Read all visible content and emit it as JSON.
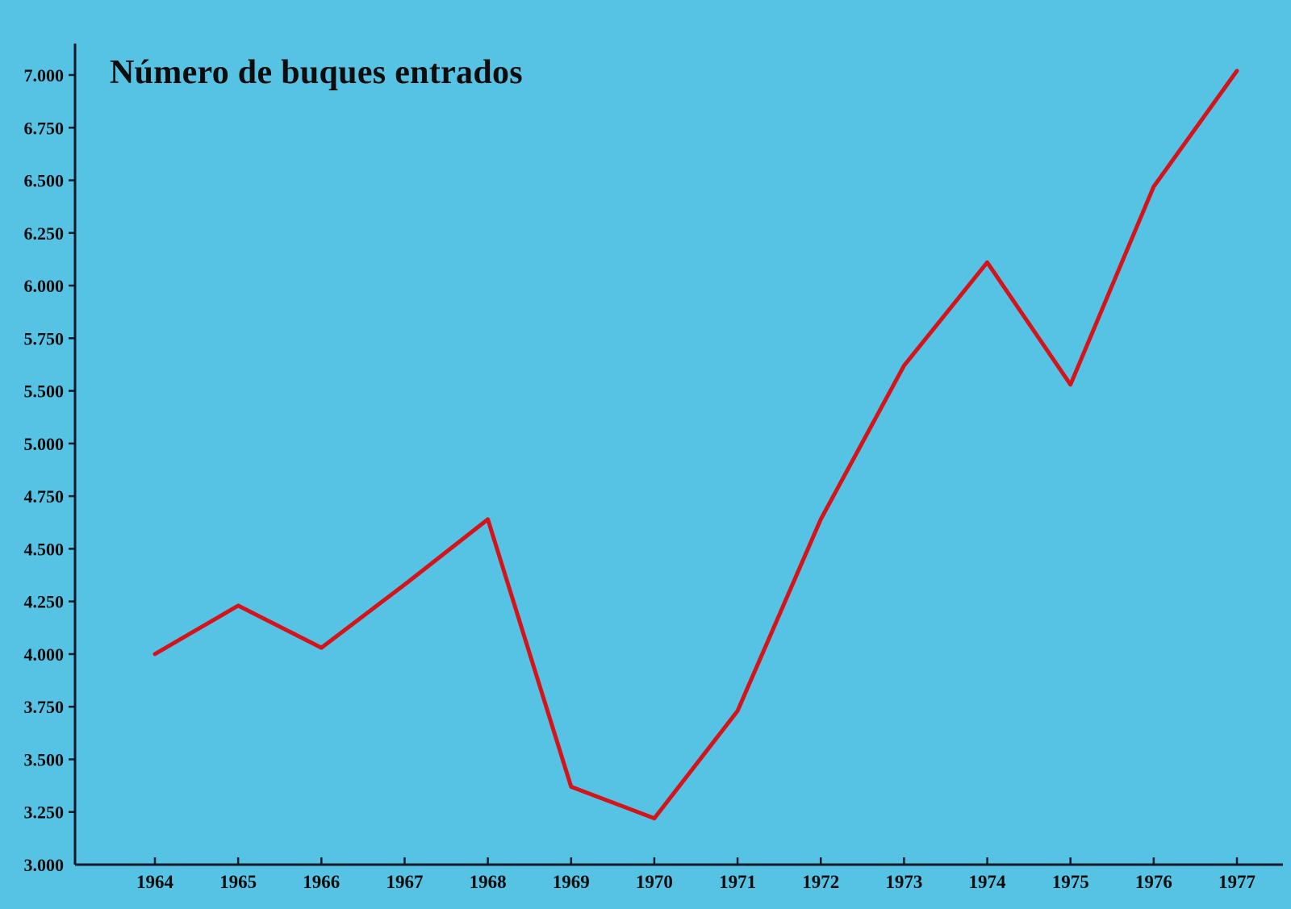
{
  "title": "Número de buques entrados",
  "colors": {
    "background": "#56c3e5",
    "line": "#d4141a",
    "axis": "#0d1a2a",
    "text": "#0d0d0d"
  },
  "chart_data": {
    "type": "line",
    "title": "Número de buques entrados",
    "xlabel": "",
    "ylabel": "",
    "categories": [
      "1964",
      "1965",
      "1966",
      "1967",
      "1968",
      "1969",
      "1970",
      "1971",
      "1972",
      "1973",
      "1974",
      "1975",
      "1976",
      "1977"
    ],
    "series": [
      {
        "name": "Número de buques entrados",
        "values": [
          4000,
          4230,
          4030,
          4330,
          4640,
          3370,
          3220,
          3730,
          4640,
          5620,
          6110,
          5530,
          6470,
          7020
        ]
      }
    ],
    "y_tick_labels": [
      "7.000",
      "6.750",
      "6.500",
      "6.250",
      "6.000",
      "5.750",
      "5.500",
      "5.000",
      "4.750",
      "4.500",
      "4.250",
      "4.000",
      "3.750",
      "3.500",
      "3.250",
      "3.000"
    ],
    "x_tick_labels": [
      "1964",
      "1965",
      "1966",
      "1967",
      "1968",
      "1969",
      "1970",
      "1971",
      "1972",
      "1973",
      "1974",
      "1975",
      "1976",
      "1977"
    ],
    "ylim": [
      3000,
      7000
    ],
    "grid": false,
    "legend": "none"
  }
}
